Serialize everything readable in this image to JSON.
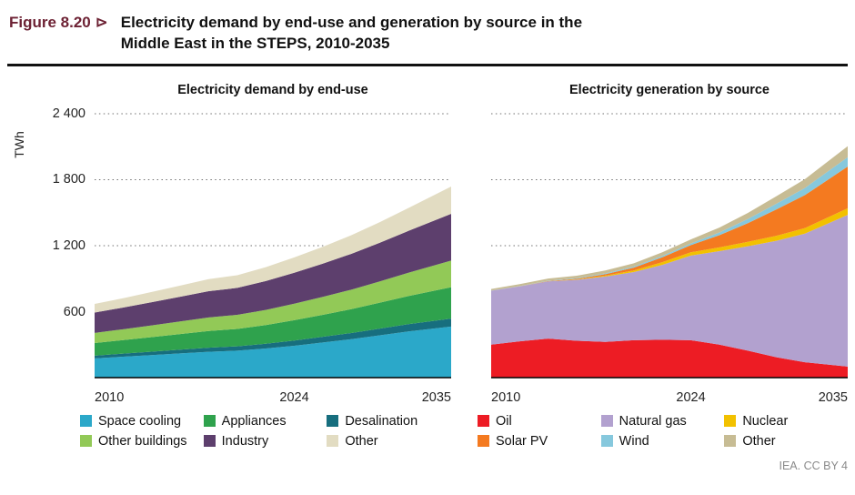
{
  "figure": {
    "label": "Figure 8.20 ⊳",
    "title_line1": "Electricity demand by end-use and generation by source in the",
    "title_line2": "Middle East in the STEPS, 2010-2035"
  },
  "axis": {
    "unit": "TWh",
    "ticks": [
      "2 400",
      "1 800",
      "1 200",
      "600"
    ],
    "tick_values": [
      2400,
      1800,
      1200,
      600
    ],
    "ymax": 2400,
    "x_ticks": [
      "2010",
      "2024",
      "2035"
    ]
  },
  "credit": "IEA. CC BY 4",
  "chart_data": [
    {
      "type": "area",
      "title": "Electricity demand by end-use",
      "xlabel": "",
      "ylabel": "TWh",
      "ylim": [
        0,
        2400
      ],
      "grid": "dotted-horizontal",
      "legend_position": "bottom",
      "x": [
        2010,
        2012,
        2014,
        2016,
        2018,
        2020,
        2022,
        2024,
        2026,
        2028,
        2030,
        2032,
        2035
      ],
      "series": [
        {
          "name": "Space cooling",
          "color": "#2BA8C9",
          "values": [
            175,
            190,
            205,
            220,
            235,
            245,
            265,
            290,
            320,
            350,
            385,
            420,
            465
          ]
        },
        {
          "name": "Desalination",
          "color": "#176E7E",
          "values": [
            25,
            28,
            31,
            34,
            37,
            40,
            43,
            47,
            51,
            56,
            61,
            66,
            72
          ]
        },
        {
          "name": "Appliances",
          "color": "#2FA24D",
          "values": [
            115,
            123,
            132,
            142,
            152,
            158,
            170,
            185,
            200,
            217,
            236,
            256,
            285
          ]
        },
        {
          "name": "Other buildings",
          "color": "#92C957",
          "values": [
            92,
            99,
            107,
            115,
            123,
            128,
            138,
            150,
            163,
            177,
            193,
            212,
            243
          ]
        },
        {
          "name": "Industry",
          "color": "#5D3F6D",
          "values": [
            185,
            197,
            211,
            225,
            239,
            245,
            262,
            282,
            303,
            326,
            352,
            380,
            425
          ]
        },
        {
          "name": "Other",
          "color": "#E2DCC2",
          "values": [
            78,
            85,
            93,
            101,
            110,
            115,
            126,
            139,
            153,
            169,
            187,
            208,
            248
          ]
        }
      ],
      "legend": [
        {
          "label": "Space cooling",
          "color": "#2BA8C9"
        },
        {
          "label": "Appliances",
          "color": "#2FA24D"
        },
        {
          "label": "Desalination",
          "color": "#176E7E"
        },
        {
          "label": "Other buildings",
          "color": "#92C957"
        },
        {
          "label": "Industry",
          "color": "#5D3F6D"
        },
        {
          "label": "Other",
          "color": "#E2DCC2"
        }
      ]
    },
    {
      "type": "area",
      "title": "Electricity generation by source",
      "xlabel": "",
      "ylabel": "TWh",
      "ylim": [
        0,
        2400
      ],
      "grid": "dotted-horizontal",
      "legend_position": "bottom",
      "x": [
        2010,
        2012,
        2014,
        2016,
        2018,
        2020,
        2022,
        2024,
        2026,
        2028,
        2030,
        2032,
        2035
      ],
      "series": [
        {
          "name": "Oil",
          "color": "#ED1C24",
          "values": [
            300,
            330,
            355,
            335,
            325,
            340,
            345,
            340,
            300,
            245,
            185,
            140,
            100
          ]
        },
        {
          "name": "Natural gas",
          "color": "#B2A1CF",
          "values": [
            490,
            500,
            520,
            555,
            595,
            620,
            680,
            770,
            850,
            950,
            1060,
            1170,
            1380
          ]
        },
        {
          "name": "Nuclear",
          "color": "#F2C100",
          "values": [
            0,
            0,
            0,
            3,
            8,
            15,
            25,
            30,
            35,
            40,
            45,
            50,
            60
          ]
        },
        {
          "name": "Solar PV",
          "color": "#F47A20",
          "values": [
            0,
            1,
            3,
            6,
            12,
            25,
            45,
            65,
            110,
            170,
            240,
            300,
            380
          ]
        },
        {
          "name": "Wind",
          "color": "#86C8DD",
          "values": [
            1,
            2,
            3,
            5,
            8,
            10,
            12,
            15,
            25,
            38,
            52,
            65,
            85
          ]
        },
        {
          "name": "Other",
          "color": "#C7BC94",
          "values": [
            15,
            17,
            20,
            23,
            27,
            30,
            33,
            37,
            45,
            55,
            68,
            80,
            100
          ]
        }
      ],
      "legend": [
        {
          "label": "Oil",
          "color": "#ED1C24"
        },
        {
          "label": "Natural gas",
          "color": "#B2A1CF"
        },
        {
          "label": "Nuclear",
          "color": "#F2C100"
        },
        {
          "label": "Solar PV",
          "color": "#F47A20"
        },
        {
          "label": "Wind",
          "color": "#86C8DD"
        },
        {
          "label": "Other",
          "color": "#C7BC94"
        }
      ]
    }
  ]
}
